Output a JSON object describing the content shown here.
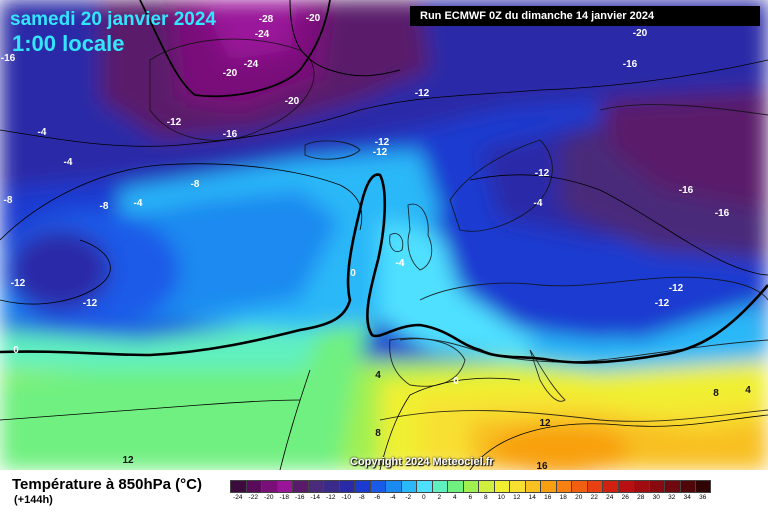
{
  "header": {
    "date": "samedi 20 janvier 2024",
    "time": "1:00 locale",
    "run": "Run ECMWF 0Z du dimanche 14 janvier 2024"
  },
  "copyright": "Copyright 2024 Meteociel.fr",
  "legend": {
    "title": "Température à 850hPa (°C)",
    "subtitle": "(+144h)",
    "ticks": [
      "-24",
      "-22",
      "-20",
      "-18",
      "-16",
      "-14",
      "-12",
      "-10",
      "-8",
      "-6",
      "-4",
      "-2",
      "0",
      "2",
      "4",
      "6",
      "8",
      "10",
      "12",
      "14",
      "16",
      "18",
      "20",
      "22",
      "24",
      "26",
      "28",
      "30",
      "32",
      "34",
      "36"
    ],
    "colors": [
      "#3d0a3d",
      "#5a0a5a",
      "#7a0f7a",
      "#9a149a",
      "#5a1a6a",
      "#4a2a7a",
      "#3a2a8a",
      "#2a2aa8",
      "#1a3ad0",
      "#1a5ae8",
      "#1a8af0",
      "#2ab8f8",
      "#50e0ff",
      "#60f0c0",
      "#70f080",
      "#a0f050",
      "#d0f040",
      "#f0f030",
      "#f8e030",
      "#f8c020",
      "#f8a010",
      "#f88010",
      "#f06010",
      "#e84010",
      "#d02010",
      "#b81010",
      "#a00c10",
      "#880a10",
      "#700810",
      "#500608",
      "#300404"
    ]
  },
  "map_labels": [
    {
      "text": "-28"
    },
    {
      "text": "-20"
    },
    {
      "text": "-24"
    },
    {
      "text": "-16"
    },
    {
      "text": "-20"
    },
    {
      "text": "-24"
    },
    {
      "text": "-20"
    },
    {
      "text": "-12"
    },
    {
      "text": "-16"
    },
    {
      "text": "-4"
    },
    {
      "text": "-12"
    },
    {
      "text": "-4"
    },
    {
      "text": "-12"
    },
    {
      "text": "-8"
    },
    {
      "text": "-8"
    },
    {
      "text": "-4"
    },
    {
      "text": "-8"
    },
    {
      "text": "-4"
    },
    {
      "text": "-12"
    },
    {
      "text": "-12"
    },
    {
      "text": "-12"
    },
    {
      "text": "-4"
    },
    {
      "text": "0"
    },
    {
      "text": "-4"
    },
    {
      "text": "-12"
    },
    {
      "text": "-16"
    },
    {
      "text": "-16"
    },
    {
      "text": "-12"
    },
    {
      "text": "-12"
    },
    {
      "text": "-16"
    },
    {
      "text": "-20"
    },
    {
      "text": "0"
    },
    {
      "text": "4"
    },
    {
      "text": "0"
    },
    {
      "text": "8"
    },
    {
      "text": "8"
    },
    {
      "text": "4"
    },
    {
      "text": "12"
    },
    {
      "text": "16"
    },
    {
      "text": "12"
    }
  ]
}
